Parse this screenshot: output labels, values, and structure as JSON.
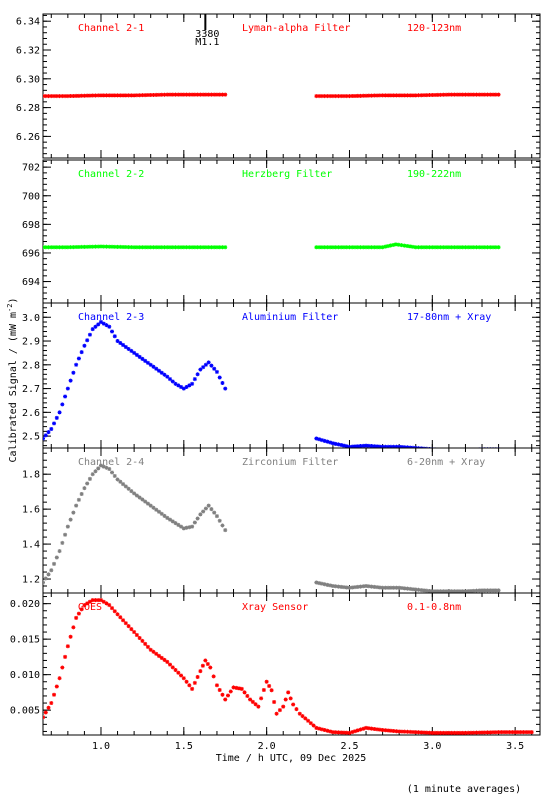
{
  "chart_data": {
    "type": "scatter",
    "xlabel": "Time / h UTC, 09 Dec 2025",
    "ylabel": "Calibrated Signal / (mW m",
    "ylabel_sup": "-2",
    "ylabel_close": ")",
    "xlim": [
      0.65,
      3.65
    ],
    "x_ticks": [
      "1.0",
      "1.5",
      "2.0",
      "2.5",
      "3.0",
      "3.5"
    ],
    "footnote": "(1 minute averages)",
    "flare_marker": {
      "x": 1.63,
      "label_top": "3380",
      "label_bottom": "M1.1"
    },
    "panels": [
      {
        "channel": "Channel 2-1",
        "filter": "Lyman-alpha Filter",
        "band": "120-123nm",
        "color": "#ff0000",
        "ylim": [
          6.245,
          6.345
        ],
        "y_ticks": [
          "6.34",
          "6.32",
          "6.30",
          "6.28",
          "6.26"
        ],
        "series": [
          {
            "x": [
              0.65,
              0.8,
              1.0,
              1.2,
              1.4,
              1.6,
              1.75
            ],
            "y": [
              6.288,
              6.288,
              6.2885,
              6.2885,
              6.289,
              6.289,
              6.289
            ]
          },
          {
            "x": [
              2.3,
              2.5,
              2.7,
              2.9,
              3.1,
              3.3,
              3.4
            ],
            "y": [
              6.288,
              6.288,
              6.2885,
              6.2885,
              6.289,
              6.289,
              6.289
            ]
          }
        ]
      },
      {
        "channel": "Channel 2-2",
        "filter": "Herzberg Filter",
        "band": "190-222nm",
        "color": "#00ff00",
        "ylim": [
          692.5,
          702.5
        ],
        "y_ticks": [
          "702",
          "700",
          "698",
          "696",
          "694"
        ],
        "series": [
          {
            "x": [
              0.65,
              0.8,
              1.0,
              1.2,
              1.4,
              1.6,
              1.75
            ],
            "y": [
              696.4,
              696.4,
              696.45,
              696.4,
              696.4,
              696.4,
              696.4
            ]
          },
          {
            "x": [
              2.3,
              2.5,
              2.7,
              2.78,
              2.9,
              3.1,
              3.3,
              3.4
            ],
            "y": [
              696.4,
              696.4,
              696.4,
              696.6,
              696.4,
              696.4,
              696.4,
              696.4
            ]
          }
        ]
      },
      {
        "channel": "Channel 2-3",
        "filter": "Aluminium Filter",
        "band": "17-80nm + Xray",
        "color": "#0000ff",
        "ylim": [
          2.45,
          3.06
        ],
        "y_ticks": [
          "3.0",
          "2.9",
          "2.8",
          "2.7",
          "2.6",
          "2.5"
        ],
        "series": [
          {
            "x": [
              0.65,
              0.7,
              0.75,
              0.8,
              0.85,
              0.9,
              0.95,
              1.0,
              1.05,
              1.1,
              1.2,
              1.3,
              1.4,
              1.45,
              1.5,
              1.55,
              1.6,
              1.65,
              1.7,
              1.75
            ],
            "y": [
              2.49,
              2.53,
              2.6,
              2.7,
              2.8,
              2.88,
              2.95,
              2.98,
              2.96,
              2.9,
              2.85,
              2.8,
              2.75,
              2.72,
              2.7,
              2.72,
              2.78,
              2.81,
              2.77,
              2.7
            ]
          },
          {
            "x": [
              2.3,
              2.4,
              2.5,
              2.6,
              2.7,
              2.8,
              2.9,
              3.0,
              3.1,
              3.2,
              3.3,
              3.4
            ],
            "y": [
              2.49,
              2.47,
              2.455,
              2.46,
              2.455,
              2.455,
              2.45,
              2.445,
              2.44,
              2.44,
              2.445,
              2.445
            ]
          }
        ]
      },
      {
        "channel": "Channel 2-4",
        "filter": "Zirconium Filter",
        "band": "6-20nm + Xray",
        "color": "#808080",
        "ylim": [
          1.12,
          1.95
        ],
        "y_ticks": [
          "1.8",
          "1.6",
          "1.4",
          "1.2"
        ],
        "series": [
          {
            "x": [
              0.65,
              0.7,
              0.75,
              0.8,
              0.85,
              0.9,
              0.95,
              1.0,
              1.05,
              1.1,
              1.2,
              1.3,
              1.4,
              1.45,
              1.5,
              1.55,
              1.6,
              1.65,
              1.7,
              1.75
            ],
            "y": [
              1.18,
              1.25,
              1.36,
              1.5,
              1.62,
              1.72,
              1.8,
              1.85,
              1.83,
              1.77,
              1.69,
              1.62,
              1.55,
              1.52,
              1.49,
              1.5,
              1.57,
              1.62,
              1.56,
              1.48
            ]
          },
          {
            "x": [
              2.3,
              2.4,
              2.5,
              2.6,
              2.7,
              2.8,
              2.9,
              3.0,
              3.1,
              3.2,
              3.3,
              3.4
            ],
            "y": [
              1.18,
              1.16,
              1.15,
              1.16,
              1.15,
              1.15,
              1.14,
              1.13,
              1.13,
              1.13,
              1.135,
              1.135
            ]
          }
        ]
      },
      {
        "channel": "GOES",
        "filter": "Xray Sensor",
        "band": "0.1-0.8nm",
        "color": "#ff0000",
        "ylim": [
          0.0015,
          0.0215
        ],
        "y_ticks": [
          "0.020",
          "0.015",
          "0.010",
          "0.005"
        ],
        "series": [
          {
            "x": [
              0.65,
              0.7,
              0.75,
              0.8,
              0.85,
              0.9,
              0.95,
              1.0,
              1.05,
              1.1,
              1.2,
              1.3,
              1.4,
              1.5,
              1.55,
              1.6,
              1.63,
              1.66,
              1.7,
              1.75,
              1.8,
              1.85,
              1.9,
              1.95,
              2.0,
              2.03,
              2.06,
              2.1,
              2.13,
              2.16,
              2.2,
              2.25,
              2.3,
              2.35,
              2.4,
              2.5,
              2.6,
              2.7,
              2.8,
              3.0,
              3.2,
              3.4,
              3.6
            ],
            "y": [
              0.004,
              0.006,
              0.0095,
              0.014,
              0.018,
              0.0198,
              0.0205,
              0.0205,
              0.0198,
              0.0185,
              0.016,
              0.0135,
              0.0118,
              0.0095,
              0.008,
              0.0105,
              0.012,
              0.011,
              0.0085,
              0.0065,
              0.0082,
              0.008,
              0.0065,
              0.0055,
              0.009,
              0.0078,
              0.0045,
              0.0055,
              0.0075,
              0.0058,
              0.0045,
              0.0035,
              0.0025,
              0.0022,
              0.0019,
              0.0018,
              0.0025,
              0.0022,
              0.002,
              0.0018,
              0.0018,
              0.0019,
              0.0019
            ]
          }
        ]
      }
    ]
  }
}
